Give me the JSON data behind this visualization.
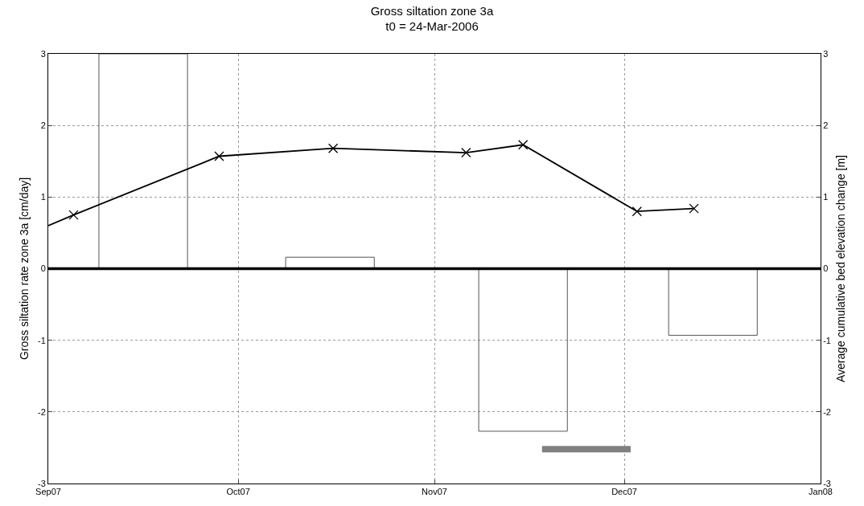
{
  "chart_data": {
    "type": "bar",
    "title": "Gross siltation zone 3a\nt0 = 24-Mar-2006",
    "ylabel": "Gross siltation rate zone 3a [cm/day]",
    "y2label": "Average cumulative bed elevation change [m]",
    "x": [
      "2007-09-16",
      "2007-10-15T12:00",
      "2007-11-15",
      "2007-12-15"
    ],
    "series": [
      {
        "color": "#555555",
        "values": [
          3,
          0.16,
          -2.27,
          -0.93
        ]
      },
      {
        "type": "line",
        "axis": "y2",
        "color": "#000000",
        "x": [
          "2007-09-01",
          "2007-09-05"
        ],
        "values": [
          0.6,
          0.75
        ]
      },
      {
        "type": "line",
        "axis": "y2",
        "color": "#000000",
        "marker": "cross",
        "x": [
          "2007-09-05",
          "2007-09-28",
          "2007-10-16",
          "2007-11-06",
          "2007-11-15",
          "2007-12-03",
          "2007-12-12"
        ],
        "values": [
          0.75,
          1.57,
          1.68,
          1.62,
          1.73,
          0.8,
          0.84
        ]
      },
      {
        "type": "line",
        "color": "#808080",
        "marker": "none",
        "x": [
          "2007-11-18",
          "2007-12-02"
        ],
        "values": [
          -2.52,
          -2.52
        ]
      }
    ],
    "xlim": [
      "2007-09-01",
      "2008-01-01"
    ],
    "xticks": [
      {
        "value": "2007-09-01",
        "label": "Sep07"
      },
      {
        "value": "2007-10-01",
        "label": "Oct07"
      },
      {
        "value": "2007-11-01",
        "label": "Nov07"
      },
      {
        "value": "2007-12-01",
        "label": "Dec07"
      },
      {
        "value": "2008-01-01",
        "label": "Jan08"
      }
    ],
    "ylim": [
      -3,
      3
    ],
    "yticks": [
      -3,
      -2,
      -1,
      0,
      1,
      2,
      3
    ],
    "y2lim": [
      -3,
      3
    ],
    "y2ticks": [
      -3,
      -2,
      -1,
      0,
      1,
      2,
      3
    ],
    "ref_lines": [
      {
        "axis": "y",
        "value": 0,
        "color": "#000000"
      }
    ],
    "grid": true
  }
}
